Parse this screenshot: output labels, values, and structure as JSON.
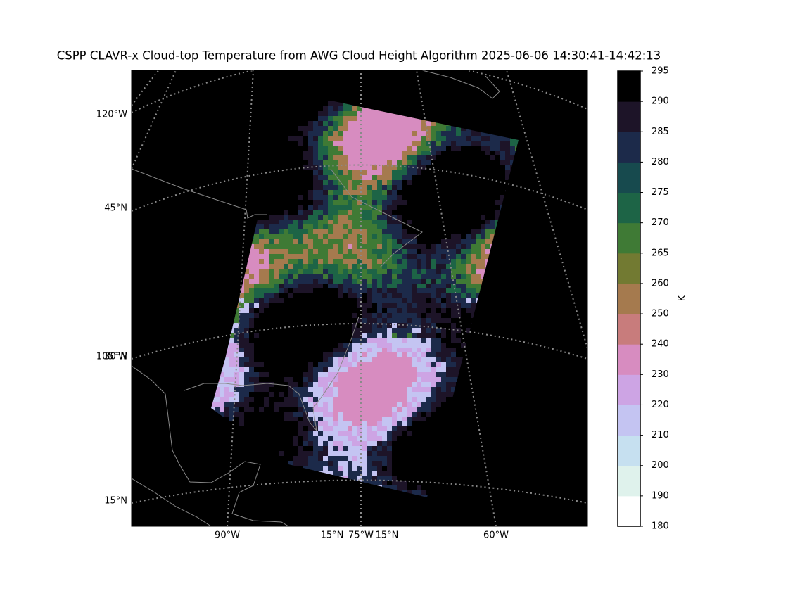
{
  "title": "CSPP CLAVR-x Cloud-top Temperature from AWG Cloud Height Algorithm 2025-06-06 14:30:41-14:42:13",
  "map": {
    "left_labels": [
      "120°W",
      "45°N",
      "105°W",
      "30°N",
      "15°N"
    ],
    "bottom_labels": [
      "90°W",
      "15°N",
      "75°W",
      "15°N",
      "60°W"
    ]
  },
  "colorbar": {
    "label": "K",
    "ticks": [
      180,
      190,
      200,
      210,
      220,
      230,
      240,
      250,
      260,
      265,
      270,
      275,
      280,
      285,
      290,
      295
    ],
    "colors": [
      "#ffffff",
      "#dff2ec",
      "#c6e0f0",
      "#c4c4f2",
      "#cda4e4",
      "#d78cc0",
      "#c87c7c",
      "#a57a4e",
      "#727a32",
      "#3f7a35",
      "#1d6446",
      "#174a4e",
      "#1c2a4a",
      "#1d1428",
      "#000000"
    ]
  }
}
